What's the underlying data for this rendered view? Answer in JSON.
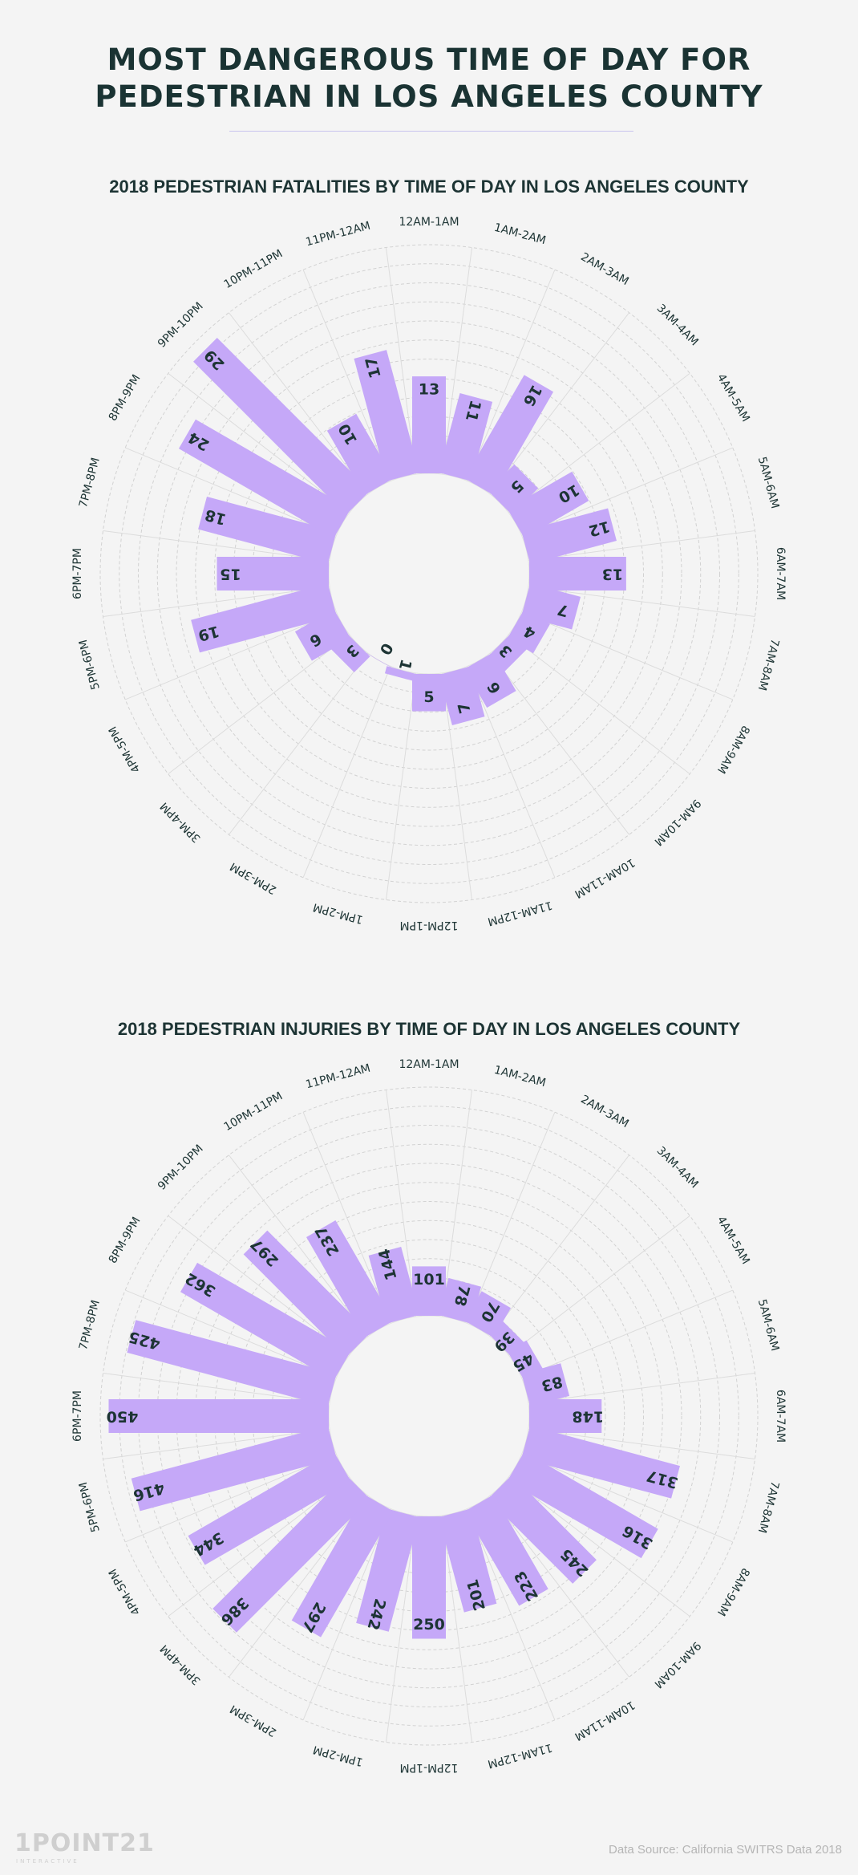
{
  "page": {
    "title_line1": "MOST DANGEROUS TIME OF DAY FOR",
    "title_line2": "PEDESTRIAN IN LOS ANGELES COUNTY",
    "source": "Data Source: California SWITRS Data 2018",
    "logo_main": "1POINT21",
    "logo_sub": "INTERACTIVE"
  },
  "colors": {
    "bar": "#c5a8f8",
    "label": "#1d3434",
    "grid": "#d2d2d2",
    "background": "#f4f4f4"
  },
  "chart_data": [
    {
      "type": "bar",
      "layout": "radial",
      "title": "2018 PEDESTRIAN FATALITIES BY TIME OF DAY IN LOS ANGELES COUNTY",
      "categories": [
        "12AM-1AM",
        "1AM-2AM",
        "2AM-3AM",
        "3AM-4AM",
        "4AM-5AM",
        "5AM-6AM",
        "6AM-7AM",
        "7AM-8AM",
        "8AM-9AM",
        "9AM-10AM",
        "10AM-11AM",
        "11AM-12PM",
        "12PM-1PM",
        "1PM-2PM",
        "2PM-3PM",
        "3PM-4PM",
        "4PM-5PM",
        "5PM-6PM",
        "6PM-7PM",
        "7PM-8PM",
        "8PM-9PM",
        "9PM-10PM",
        "10PM-11PM",
        "11PM-12AM"
      ],
      "values": [
        13,
        11,
        16,
        5,
        10,
        12,
        13,
        7,
        4,
        3,
        6,
        7,
        5,
        1,
        0,
        3,
        6,
        19,
        15,
        18,
        24,
        29,
        10,
        17
      ],
      "rmax": 30,
      "grid": true
    },
    {
      "type": "bar",
      "layout": "radial",
      "title": "2018 PEDESTRIAN INJURIES BY TIME OF DAY IN LOS ANGELES COUNTY",
      "categories": [
        "12AM-1AM",
        "1AM-2AM",
        "2AM-3AM",
        "3AM-4AM",
        "4AM-5AM",
        "5AM-6AM",
        "6AM-7AM",
        "7AM-8AM",
        "8AM-9AM",
        "9AM-10AM",
        "10AM-11AM",
        "11AM-12PM",
        "12PM-1PM",
        "1PM-2PM",
        "2PM-3PM",
        "3PM-4PM",
        "4PM-5PM",
        "5PM-6PM",
        "6PM-7PM",
        "7PM-8PM",
        "8PM-9PM",
        "9PM-10PM",
        "10PM-11PM",
        "11PM-12AM"
      ],
      "values": [
        101,
        78,
        70,
        39,
        45,
        83,
        148,
        317,
        316,
        245,
        223,
        201,
        250,
        242,
        297,
        386,
        344,
        416,
        450,
        425,
        362,
        297,
        237,
        144
      ],
      "rmax": 450,
      "grid": true
    }
  ]
}
